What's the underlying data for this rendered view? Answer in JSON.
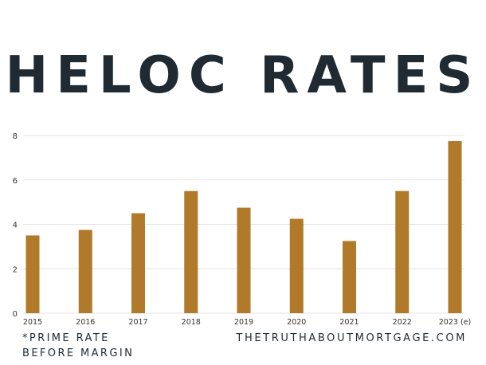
{
  "title": "HELOC RATES",
  "footnote": {
    "line1": "*PRIME RATE",
    "line2": "BEFORE MARGIN"
  },
  "source": "THETRUTHABOUTMORTGAGE.COM",
  "colors": {
    "bar": "#b07a2a",
    "title": "#1f2a33",
    "grid": "#e3e3e3",
    "axis_text": "#333333"
  },
  "chart_data": {
    "type": "bar",
    "title": "HELOC RATES",
    "xlabel": "",
    "ylabel": "",
    "categories": [
      "2015",
      "2016",
      "2017",
      "2018",
      "2019",
      "2020",
      "2021",
      "2022",
      "2023 (e)"
    ],
    "values": [
      3.5,
      3.75,
      4.5,
      5.5,
      4.75,
      4.25,
      3.25,
      5.5,
      7.75
    ],
    "ylim": [
      0,
      8
    ],
    "yticks": [
      0,
      2,
      4,
      6,
      8
    ],
    "grid": true,
    "legend": "none"
  }
}
